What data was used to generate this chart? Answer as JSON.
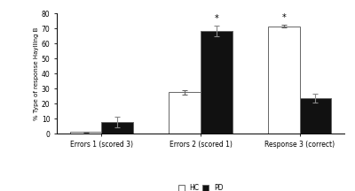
{
  "categories": [
    "Errors 1 (scored 3)",
    "Errors 2 (scored 1)",
    "Response 3 (correct)"
  ],
  "hc_values": [
    1.0,
    27.5,
    71.5
  ],
  "pd_values": [
    7.5,
    68.5,
    23.5
  ],
  "hc_errors": [
    0.5,
    1.5,
    1.0
  ],
  "pd_errors": [
    3.5,
    3.5,
    3.0
  ],
  "hc_color": "#ffffff",
  "pd_color": "#111111",
  "bar_edge_color": "#666666",
  "ylabel": "% Type of response Haylling B",
  "ylim": [
    0,
    80
  ],
  "yticks": [
    0,
    10,
    20,
    30,
    40,
    50,
    60,
    70,
    80
  ],
  "significance_pd_groups": [
    1
  ],
  "significance_hc_groups": [
    2
  ],
  "legend_labels": [
    "HC",
    "PD"
  ],
  "bar_width": 0.32,
  "ecolor_hc": "#666666",
  "ecolor_pd": "#888888"
}
